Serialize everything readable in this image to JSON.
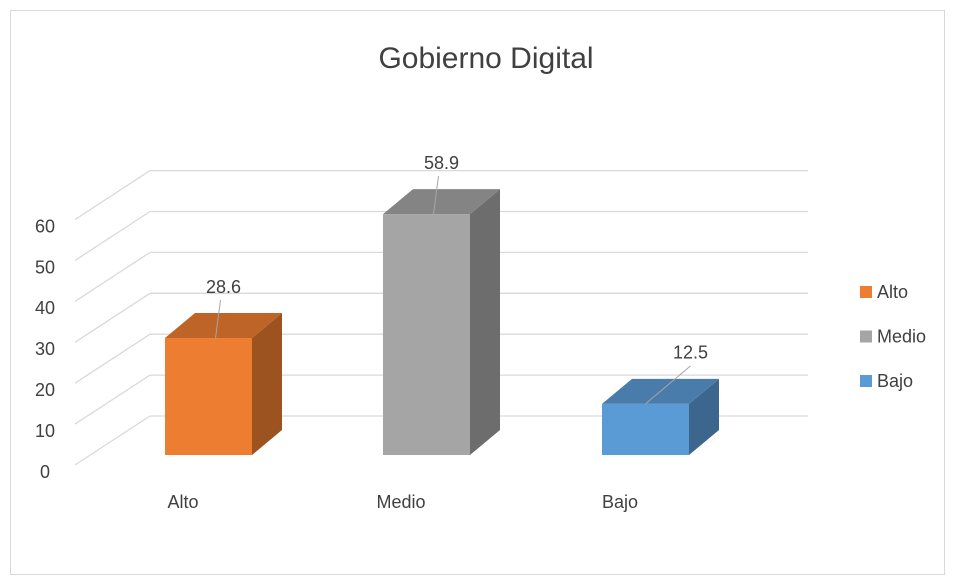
{
  "chart_data": {
    "type": "bar3d",
    "title": "Gobierno Digital",
    "categories": [
      "Alto",
      "Medio",
      "Bajo"
    ],
    "values": [
      28.6,
      58.9,
      12.5
    ],
    "colors": [
      "#ed7d31",
      "#a5a5a5",
      "#5b9bd5"
    ],
    "ylim": [
      0,
      60
    ],
    "yticks": [
      0,
      10,
      20,
      30,
      40,
      50,
      60
    ],
    "grid": true,
    "legend": "right"
  }
}
